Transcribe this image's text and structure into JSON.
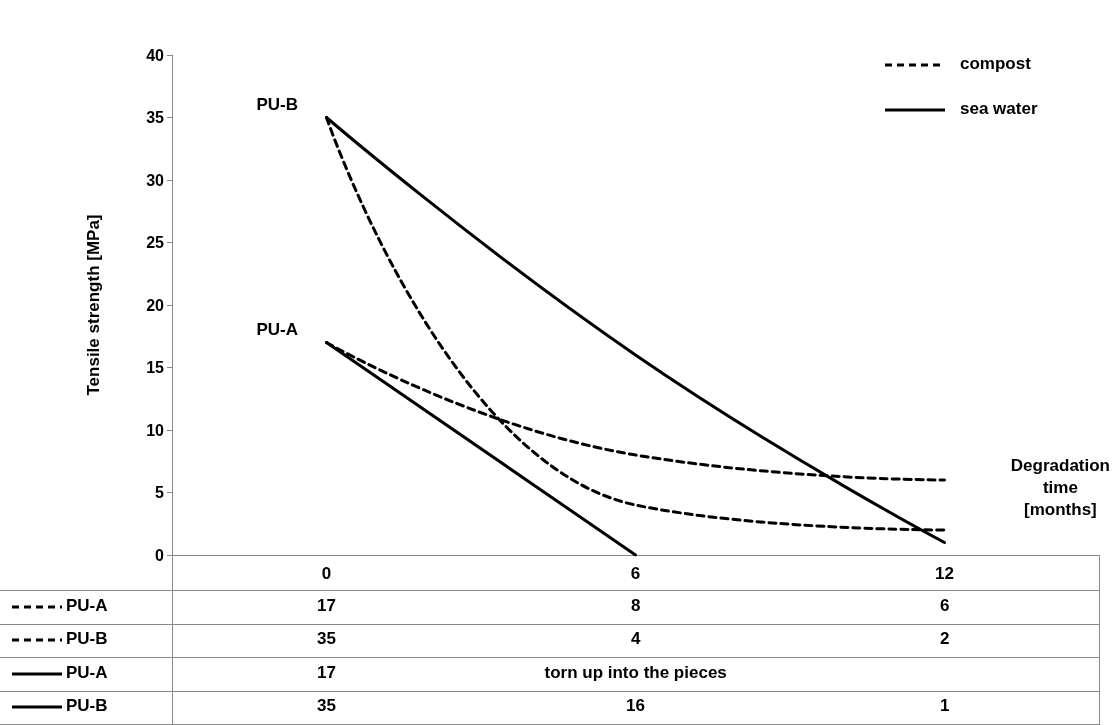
{
  "chart_data": {
    "type": "line",
    "xlabel": "Degradation time [months]",
    "ylabel": "Tensile strength [MPa]",
    "categories": [
      "0",
      "6",
      "12"
    ],
    "ylim": [
      0,
      40
    ],
    "yticks": [
      0,
      5,
      10,
      15,
      20,
      25,
      30,
      35,
      40
    ],
    "grid": false,
    "legend": "bottom left",
    "marker": "none",
    "annotations": [
      "compost",
      "sea water"
    ],
    "series": [
      {
        "name": "PU-A",
        "color": "#000000",
        "line_style": "dashed",
        "values": [
          17,
          8,
          6
        ],
        "value_labels": [
          "17",
          "8",
          "6"
        ]
      },
      {
        "name": "PU-B",
        "color": "#000000",
        "line_style": "dashed",
        "values": [
          35,
          4,
          2
        ],
        "value_labels": [
          "35",
          "4",
          "2"
        ]
      },
      {
        "name": "PU-A",
        "color": "#000000",
        "line_style": "solid",
        "values": [
          17,
          0,
          null
        ],
        "value_labels": [
          "17",
          "torn up into the pieces",
          null
        ]
      },
      {
        "name": "PU-B",
        "color": "#000000",
        "line_style": "solid",
        "values": [
          35,
          16,
          1
        ],
        "value_labels": [
          "35",
          "16",
          "1"
        ]
      }
    ]
  }
}
